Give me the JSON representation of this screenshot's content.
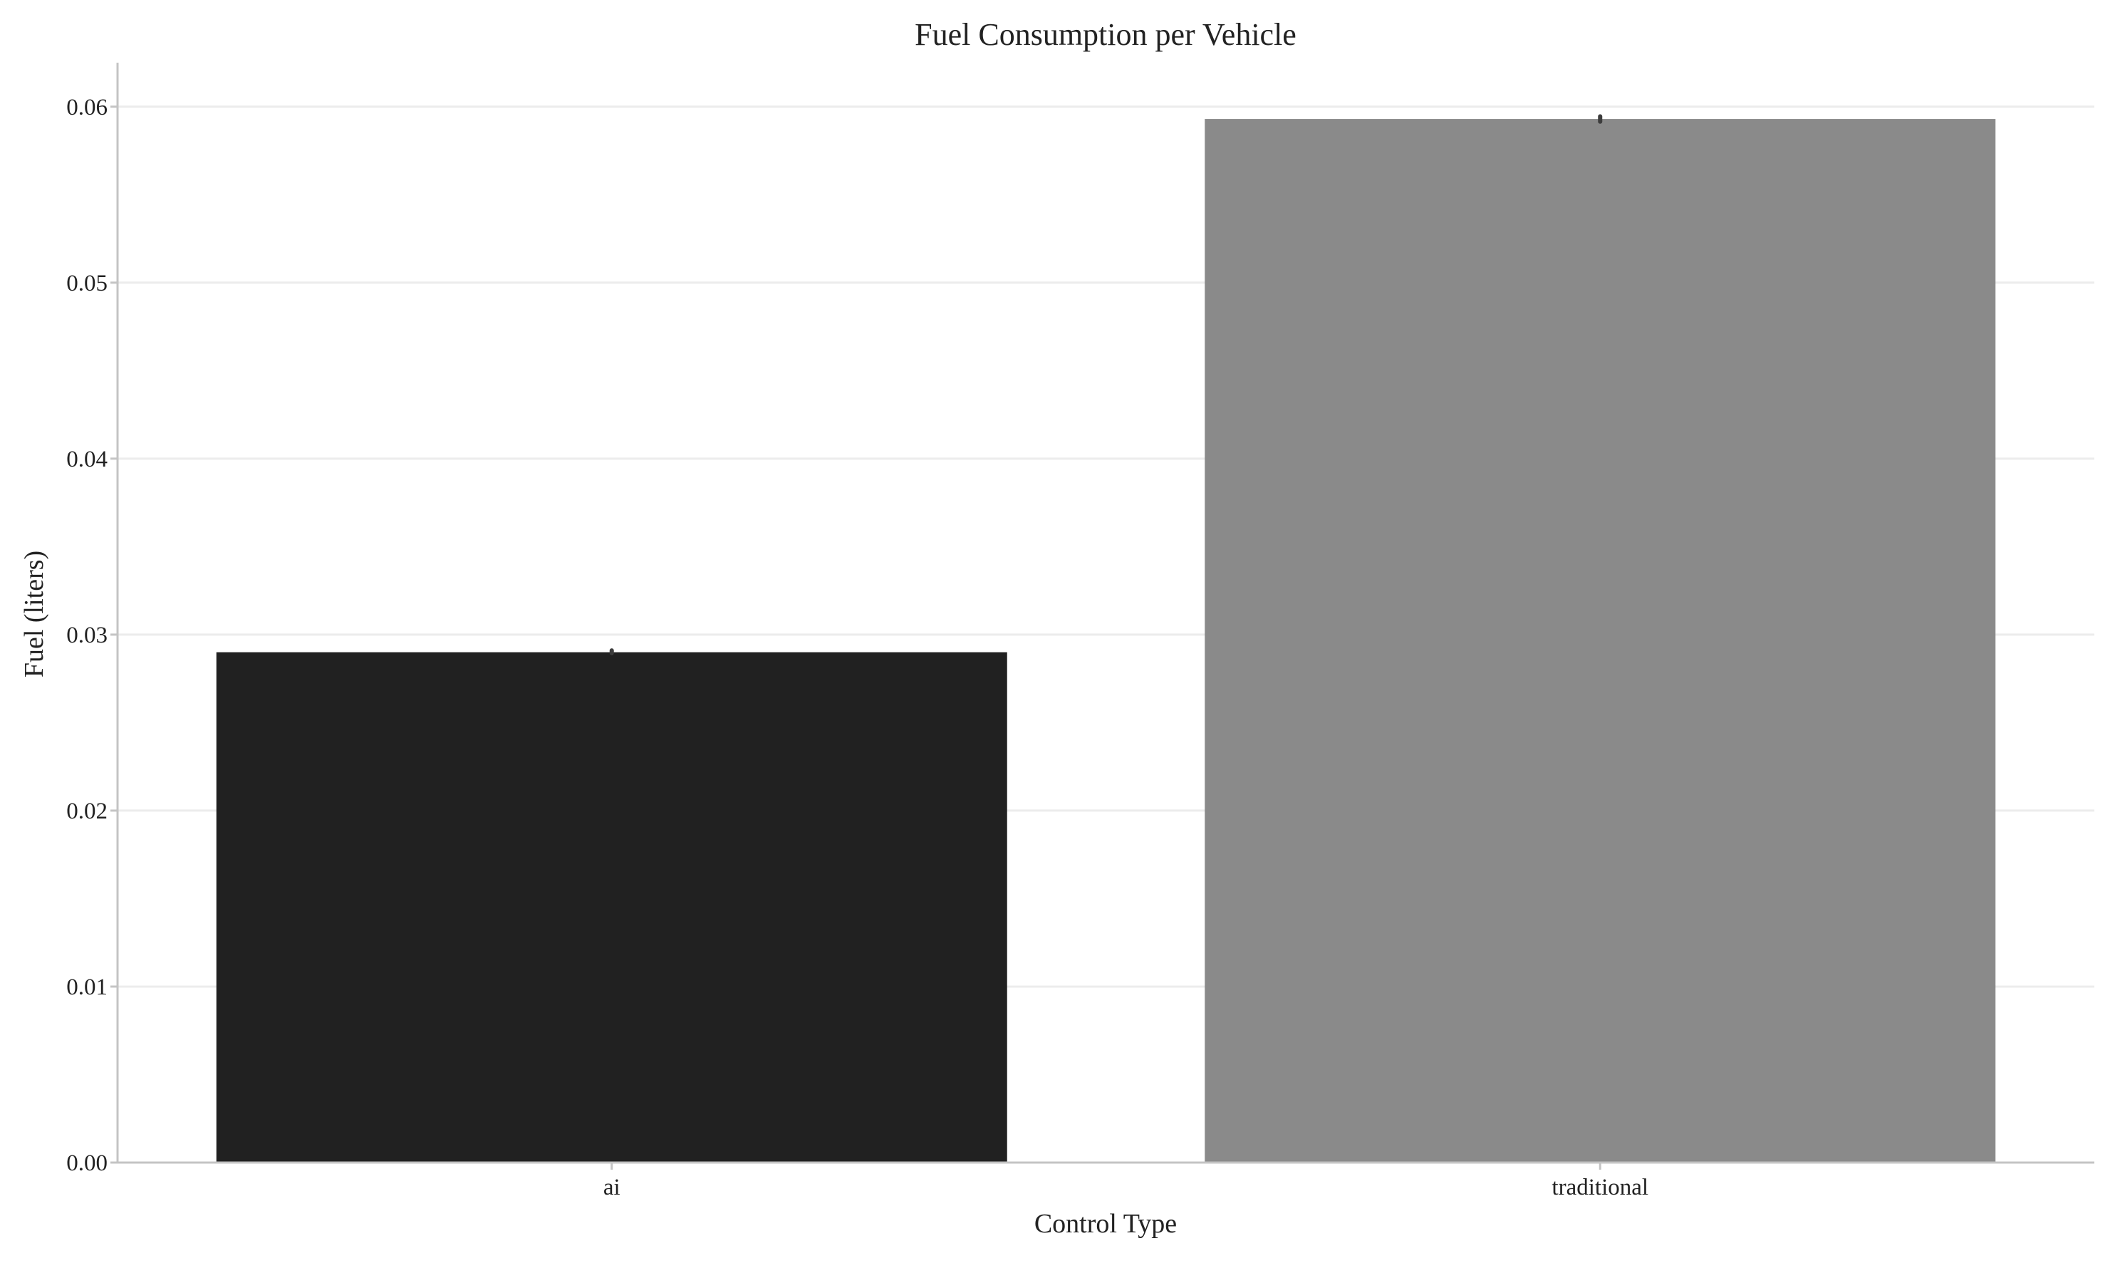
{
  "chart_data": {
    "type": "bar",
    "title": "Fuel Consumption per Vehicle",
    "xlabel": "Control Type",
    "ylabel": "Fuel (liters)",
    "categories": [
      "ai",
      "traditional"
    ],
    "values": [
      0.029,
      0.0593
    ],
    "error_bars": [
      [
        0.02895,
        0.0291
      ],
      [
        0.05915,
        0.05945
      ]
    ],
    "ylim": [
      0,
      0.0625
    ],
    "yticks": [
      0.0,
      0.01,
      0.02,
      0.03,
      0.04,
      0.05,
      0.06
    ],
    "ytick_labels": [
      "0.00",
      "0.01",
      "0.02",
      "0.03",
      "0.04",
      "0.05",
      "0.06"
    ],
    "bar_colors": [
      "#212121",
      "#8a8a8a"
    ],
    "grid": "horizontal",
    "legend": "none"
  }
}
